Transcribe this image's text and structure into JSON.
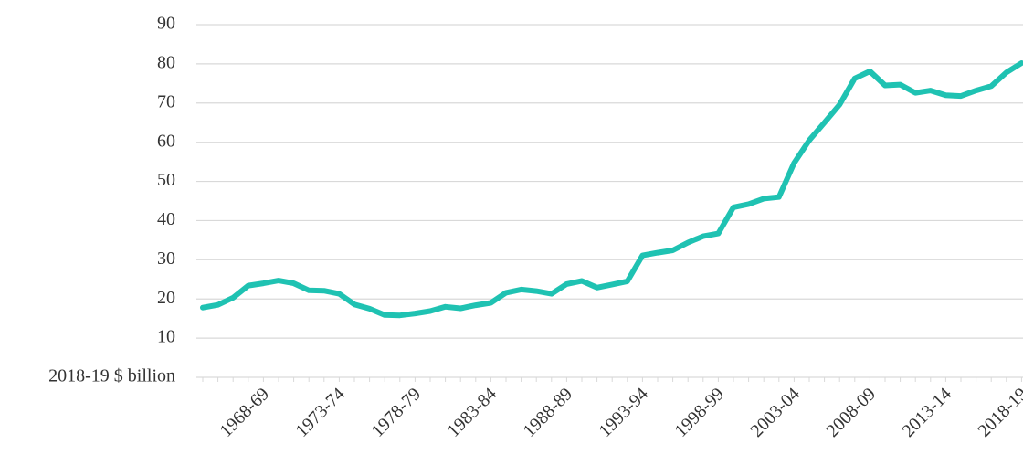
{
  "chart_data": {
    "type": "line",
    "categories": [
      null,
      null,
      null,
      null,
      "1968-69",
      null,
      null,
      null,
      null,
      "1973-74",
      null,
      null,
      null,
      null,
      "1978-79",
      null,
      null,
      null,
      null,
      "1983-84",
      null,
      null,
      null,
      null,
      "1988-89",
      null,
      null,
      null,
      null,
      "1993-94",
      null,
      null,
      null,
      null,
      "1998-99",
      null,
      null,
      null,
      null,
      "2003-04",
      null,
      null,
      null,
      null,
      "2008-09",
      null,
      null,
      null,
      null,
      "2013-14",
      null,
      null,
      null,
      null,
      "2018-19"
    ],
    "values": [
      17.8,
      18.5,
      20.3,
      23.4,
      24,
      24.7,
      24,
      22.2,
      22.1,
      21.3,
      18.6,
      17.5,
      15.9,
      15.8,
      16.3,
      16.9,
      18,
      17.6,
      18.4,
      19,
      21.6,
      22.4,
      22,
      21.3,
      23.8,
      24.6,
      22.9,
      23.7,
      24.5,
      31.1,
      31.8,
      32.4,
      34.4,
      36,
      36.7,
      43.4,
      44.2,
      45.6,
      46,
      54.7,
      60.5,
      65,
      69.6,
      76.3,
      78.1,
      74.5,
      74.7,
      72.6,
      73.2,
      72,
      71.8,
      73.2,
      74.3,
      77.8,
      80.2
    ],
    "color": "#1fc2b2",
    "ylim": [
      0,
      90
    ],
    "yticks": [
      {
        "value": 0,
        "label": "2018-19 $ billion"
      },
      10,
      20,
      30,
      40,
      50,
      60,
      70,
      80,
      90
    ],
    "grid": true
  }
}
